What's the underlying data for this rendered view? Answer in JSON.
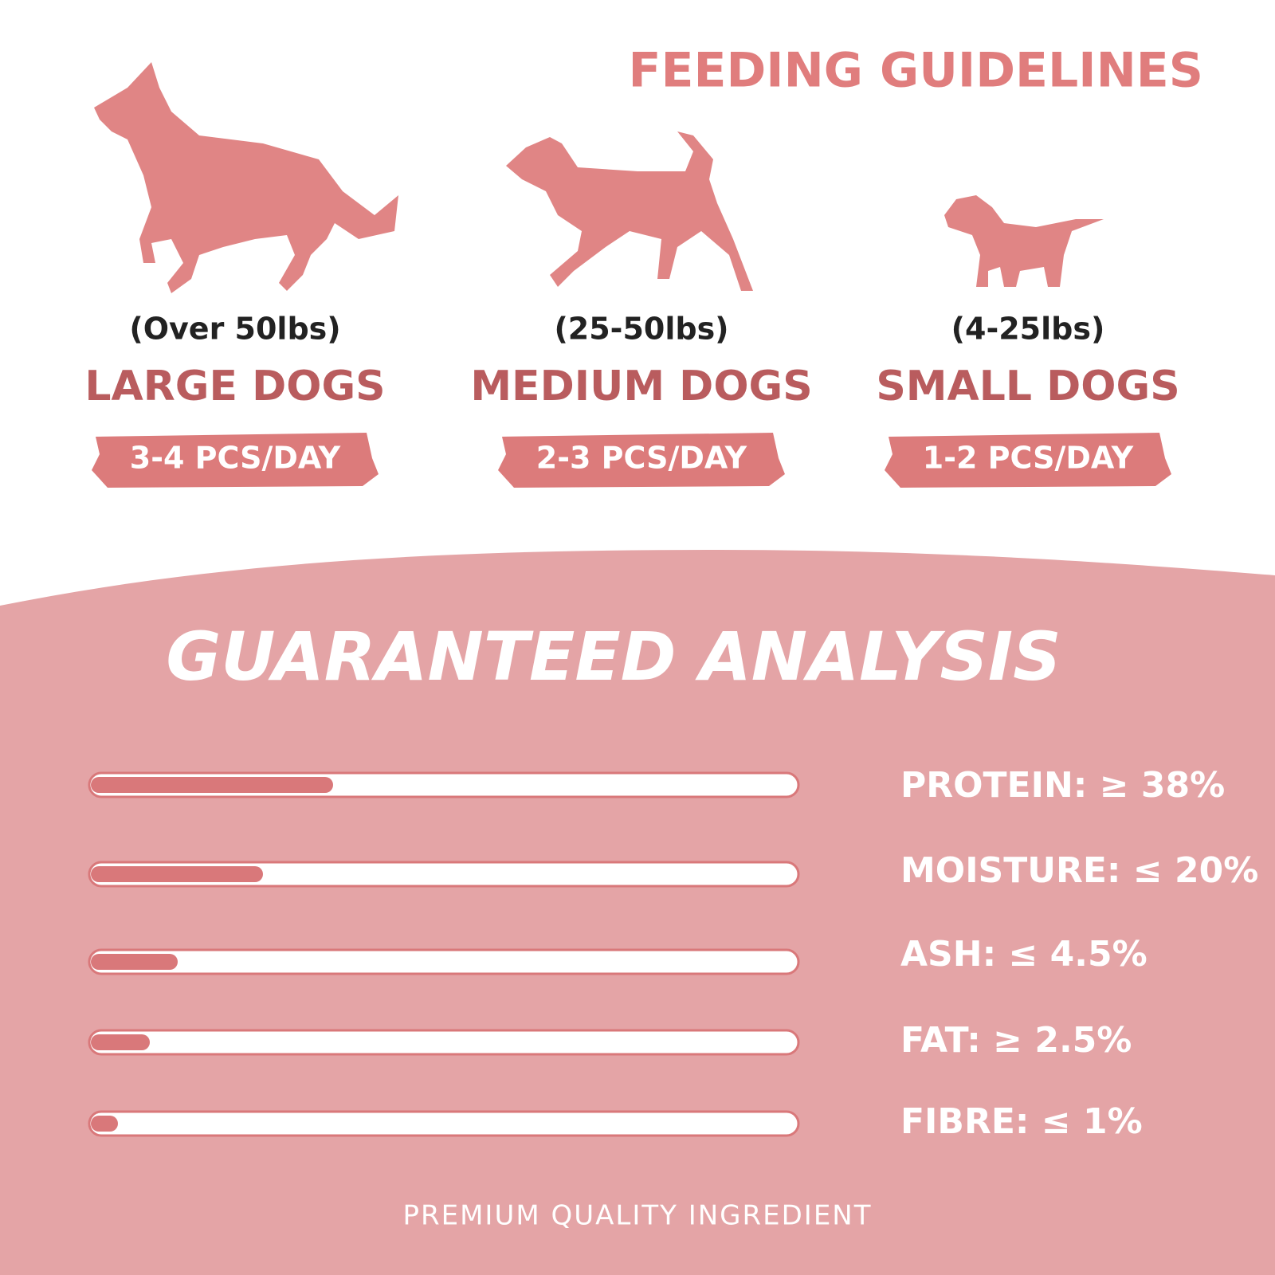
{
  "header": {
    "title": "FEEDING GUIDELINES"
  },
  "dogs": [
    {
      "weight": "(Over 50lbs)",
      "size": "LARGE DOGS",
      "dose": "3-4 PCS/DAY"
    },
    {
      "weight": "(25-50lbs)",
      "size": "MEDIUM DOGS",
      "dose": "2-3 PCS/DAY"
    },
    {
      "weight": "(4-25lbs)",
      "size": "SMALL DOGS",
      "dose": "1-2 PCS/DAY"
    }
  ],
  "analysis": {
    "title": "GUARANTEED ANALYSIS",
    "items": [
      "PROTEIN: ≥ 38%",
      "MOISTURE: ≤ 20%",
      "ASH: ≤ 4.5%",
      "FAT: ≥ 2.5%",
      "FIBRE: ≤ 1%"
    ]
  },
  "footer": "PREMIUM QUALITY INGREDIENT"
}
